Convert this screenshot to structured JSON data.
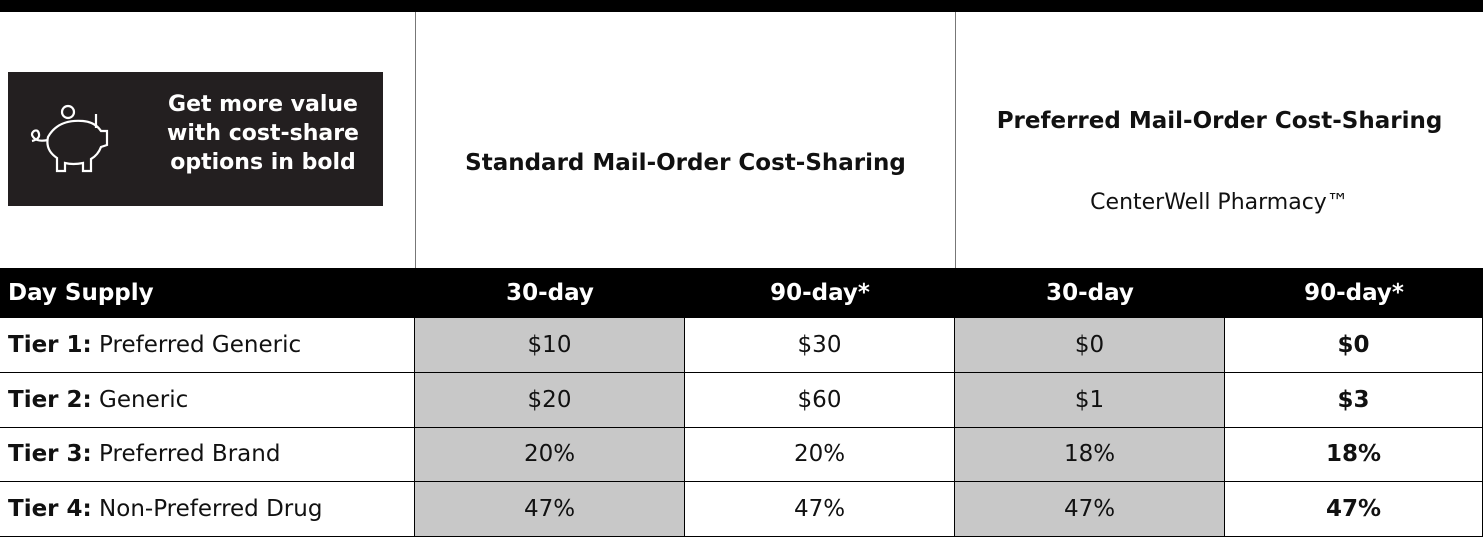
{
  "promo": {
    "lines": [
      "Get more value",
      "with cost-share",
      "options in bold"
    ]
  },
  "header": {
    "standard": "Standard Mail-Order Cost-Sharing",
    "preferred": "Preferred Mail-Order Cost-Sharing",
    "pharmacy": "CenterWell Pharmacy™"
  },
  "table": {
    "head": [
      "Day Supply",
      "30-day",
      "90-day*",
      "30-day",
      "90-day*"
    ],
    "rows": [
      {
        "tier": "Tier 1:",
        "name": "Preferred Generic",
        "cells": [
          "$10",
          "$30",
          "$0",
          "$0"
        ]
      },
      {
        "tier": "Tier 2:",
        "name": "Generic",
        "cells": [
          "$20",
          "$60",
          "$1",
          "$3"
        ]
      },
      {
        "tier": "Tier 3:",
        "name": "Preferred Brand",
        "cells": [
          "20%",
          "20%",
          "18%",
          "18%"
        ]
      },
      {
        "tier": "Tier 4:",
        "name": "Non-Preferred Drug",
        "cells": [
          "47%",
          "47%",
          "47%",
          "47%"
        ]
      }
    ]
  }
}
